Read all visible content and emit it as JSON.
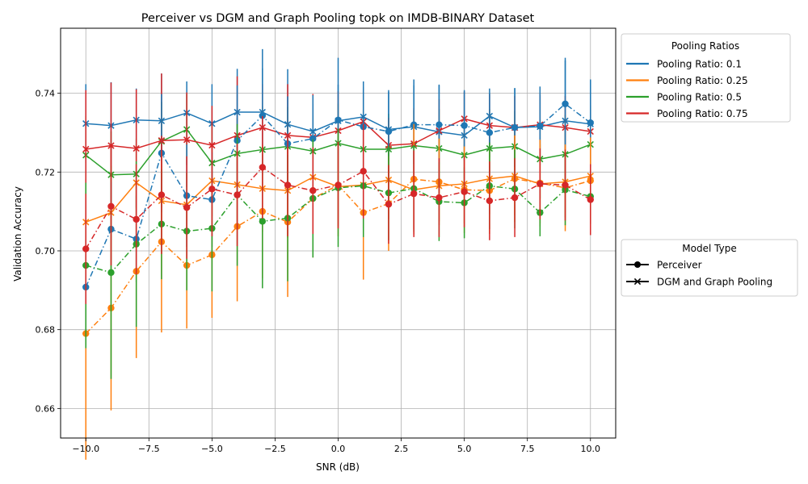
{
  "chart_data": {
    "type": "line",
    "title": "Perceiver vs DGM and Graph Pooling topk on IMDB-BINARY Dataset",
    "xlabel": "SNR (dB)",
    "ylabel": "Validation Accuracy",
    "xlim": [
      -11.0,
      11.0
    ],
    "ylim": [
      0.6525,
      0.7565
    ],
    "xticks": [
      -10,
      -7.5,
      -5,
      -2.5,
      0,
      2.5,
      5,
      7.5,
      10
    ],
    "xtick_labels": [
      "−10.0",
      "−7.5",
      "−5.0",
      "−2.5",
      "0.0",
      "2.5",
      "5.0",
      "7.5",
      "10.0"
    ],
    "yticks": [
      0.66,
      0.68,
      0.7,
      0.72,
      0.74
    ],
    "ytick_labels": [
      "0.66",
      "0.68",
      "0.70",
      "0.72",
      "0.74"
    ],
    "grid": true,
    "x": [
      -10,
      -9,
      -8,
      -7,
      -6,
      -5,
      -4,
      -3,
      -2,
      -1,
      0,
      1,
      2,
      3,
      4,
      5,
      6,
      7,
      8,
      9,
      10
    ],
    "series": [
      {
        "ratio": "0.1",
        "model": "DGM and Graph Pooling",
        "color": "#1f77b4",
        "values": [
          0.7323,
          0.7318,
          0.7332,
          0.733,
          0.735,
          0.7323,
          0.7352,
          0.7352,
          0.7321,
          0.7303,
          0.733,
          0.734,
          0.7308,
          0.7315,
          0.7302,
          0.7293,
          0.7342,
          0.7313,
          0.7315,
          0.733,
          0.7322
        ],
        "err": [
          0.01,
          0.011,
          0.008,
          0.012,
          0.008,
          0.01,
          0.011,
          0.016,
          0.014,
          0.007,
          0.016,
          0.009,
          0.01,
          0.012,
          0.012,
          0.011,
          0.007,
          0.01,
          0.008,
          0.016,
          0.011
        ]
      },
      {
        "ratio": "0.25",
        "model": "DGM and Graph Pooling",
        "color": "#ff7f0e",
        "values": [
          0.7073,
          0.7097,
          0.7173,
          0.7127,
          0.7117,
          0.7178,
          0.7168,
          0.7158,
          0.7153,
          0.7187,
          0.7163,
          0.7167,
          0.718,
          0.7155,
          0.7165,
          0.717,
          0.7183,
          0.719,
          0.717,
          0.7175,
          0.719
        ],
        "err": [
          0.011,
          0.012,
          0.01,
          0.01,
          0.008,
          0.009,
          0.01,
          0.011,
          0.012,
          0.011,
          0.01,
          0.011,
          0.01,
          0.01,
          0.009,
          0.01,
          0.009,
          0.01,
          0.01,
          0.009,
          0.01
        ]
      },
      {
        "ratio": "0.5",
        "model": "DGM and Graph Pooling",
        "color": "#2ca02c",
        "values": [
          0.7243,
          0.7193,
          0.7195,
          0.7278,
          0.7308,
          0.7223,
          0.7247,
          0.7257,
          0.7265,
          0.7253,
          0.7273,
          0.7258,
          0.7258,
          0.7267,
          0.726,
          0.7243,
          0.726,
          0.7265,
          0.7233,
          0.7245,
          0.727
        ],
        "err": [
          0.01,
          0.011,
          0.009,
          0.01,
          0.009,
          0.01,
          0.009,
          0.011,
          0.01,
          0.009,
          0.01,
          0.01,
          0.009,
          0.009,
          0.01,
          0.01,
          0.01,
          0.009,
          0.01,
          0.01,
          0.01
        ]
      },
      {
        "ratio": "0.75",
        "model": "DGM and Graph Pooling",
        "color": "#d62728",
        "values": [
          0.7258,
          0.7267,
          0.726,
          0.728,
          0.7282,
          0.7268,
          0.7293,
          0.7313,
          0.7293,
          0.7288,
          0.7305,
          0.7328,
          0.7268,
          0.7272,
          0.7305,
          0.7335,
          0.7318,
          0.7313,
          0.732,
          0.7313,
          0.7303
        ],
        "err": [
          0.015,
          0.016,
          0.015,
          0.017,
          0.012,
          0.01,
          0.015,
          0.011,
          0.013,
          0.011,
          0.01,
          0.008,
          0.007,
          0.009,
          0.008,
          0.007,
          0.008,
          0.008,
          0.008,
          0.008,
          0.008
        ]
      },
      {
        "ratio": "0.1",
        "model": "Perceiver",
        "color": "#1f77b4",
        "values": [
          0.6908,
          0.7055,
          0.703,
          0.7248,
          0.714,
          0.713,
          0.728,
          0.7343,
          0.7272,
          0.7285,
          0.7332,
          0.7315,
          0.7303,
          0.732,
          0.732,
          0.7318,
          0.73,
          0.7313,
          0.7317,
          0.7373,
          0.7325
        ],
        "err": [
          0.012,
          0.012,
          0.011,
          0.015,
          0.013,
          0.012,
          0.014,
          0.012,
          0.012,
          0.011,
          0.009,
          0.01,
          0.01,
          0.01,
          0.01,
          0.009,
          0.01,
          0.01,
          0.01,
          0.011,
          0.011
        ]
      },
      {
        "ratio": "0.25",
        "model": "Perceiver",
        "color": "#ff7f0e",
        "values": [
          0.679,
          0.6855,
          0.6948,
          0.7023,
          0.6963,
          0.699,
          0.7062,
          0.71,
          0.7073,
          0.7133,
          0.7167,
          0.7097,
          0.712,
          0.7182,
          0.7175,
          0.7155,
          0.7153,
          0.7183,
          0.7172,
          0.716,
          0.7178
        ],
        "err": [
          0.032,
          0.026,
          0.022,
          0.023,
          0.016,
          0.016,
          0.019,
          0.017,
          0.019,
          0.015,
          0.013,
          0.017,
          0.012,
          0.014,
          0.011,
          0.011,
          0.011,
          0.011,
          0.011,
          0.011,
          0.011
        ]
      },
      {
        "ratio": "0.5",
        "model": "Perceiver",
        "color": "#2ca02c",
        "values": [
          0.6963,
          0.6945,
          0.7017,
          0.7068,
          0.705,
          0.7057,
          0.7142,
          0.7075,
          0.7083,
          0.7133,
          0.716,
          0.7165,
          0.7147,
          0.7158,
          0.7125,
          0.7122,
          0.7165,
          0.7157,
          0.7097,
          0.7155,
          0.7138
        ],
        "err": [
          0.021,
          0.027,
          0.021,
          0.014,
          0.015,
          0.016,
          0.018,
          0.017,
          0.016,
          0.015,
          0.015,
          0.013,
          0.012,
          0.011,
          0.01,
          0.009,
          0.011,
          0.01,
          0.006,
          0.009,
          0.007
        ]
      },
      {
        "ratio": "0.75",
        "model": "Perceiver",
        "color": "#d62728",
        "values": [
          0.7005,
          0.7113,
          0.708,
          0.7142,
          0.711,
          0.7157,
          0.7142,
          0.7212,
          0.7167,
          0.7153,
          0.7167,
          0.7202,
          0.7118,
          0.7145,
          0.7135,
          0.715,
          0.7127,
          0.7135,
          0.717,
          0.7167,
          0.713
        ],
        "err": [
          0.014,
          0.015,
          0.014,
          0.015,
          0.013,
          0.012,
          0.013,
          0.013,
          0.013,
          0.011,
          0.011,
          0.012,
          0.01,
          0.011,
          0.01,
          0.009,
          0.01,
          0.01,
          0.009,
          0.009,
          0.009
        ]
      }
    ],
    "legends": [
      {
        "title": "Pooling Ratios",
        "placement": "outside right, top",
        "entries": [
          {
            "label": "Pooling Ratio: 0.1",
            "color": "#1f77b4"
          },
          {
            "label": "Pooling Ratio: 0.25",
            "color": "#ff7f0e"
          },
          {
            "label": "Pooling Ratio: 0.5",
            "color": "#2ca02c"
          },
          {
            "label": "Pooling Ratio: 0.75",
            "color": "#d62728"
          }
        ]
      },
      {
        "title": "Model Type",
        "placement": "outside right, middle",
        "entries": [
          {
            "label": "Perceiver",
            "marker": "circle"
          },
          {
            "label": "DGM and Graph Pooling",
            "marker": "x"
          }
        ]
      }
    ]
  }
}
